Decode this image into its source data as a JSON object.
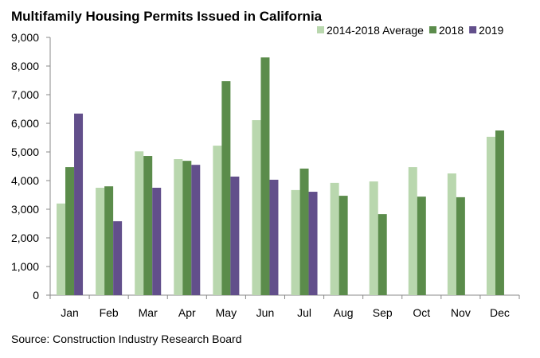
{
  "chart_data": {
    "type": "bar",
    "title": "Multifamily Housing Permits Issued in California",
    "xlabel": "",
    "ylabel": "",
    "ylim": [
      0,
      9000
    ],
    "yticks": [
      0,
      1000,
      2000,
      3000,
      4000,
      5000,
      6000,
      7000,
      8000,
      9000
    ],
    "ytick_labels": [
      "0",
      "1,000",
      "2,000",
      "3,000",
      "4,000",
      "5,000",
      "6,000",
      "7,000",
      "8,000",
      "9,000"
    ],
    "categories": [
      "Jan",
      "Feb",
      "Mar",
      "Apr",
      "May",
      "Jun",
      "Jul",
      "Aug",
      "Sep",
      "Oct",
      "Nov",
      "Dec"
    ],
    "series": [
      {
        "name": "2014-2018 Average",
        "color": "#B9D7AE",
        "values": [
          3200,
          3750,
          5020,
          4750,
          5220,
          6110,
          3670,
          3920,
          3970,
          4470,
          4250,
          5530
        ]
      },
      {
        "name": "2018",
        "color": "#5B8C4B",
        "values": [
          4470,
          3800,
          4860,
          4690,
          7470,
          8300,
          4420,
          3470,
          2830,
          3440,
          3420,
          5750
        ]
      },
      {
        "name": "2019",
        "color": "#624F8B",
        "values": [
          6340,
          2580,
          3750,
          4550,
          4140,
          4030,
          3610,
          null,
          null,
          null,
          null,
          null
        ]
      }
    ],
    "legend_position": "top-right",
    "grid": false,
    "source": "Source: Construction Industry Research Board"
  }
}
